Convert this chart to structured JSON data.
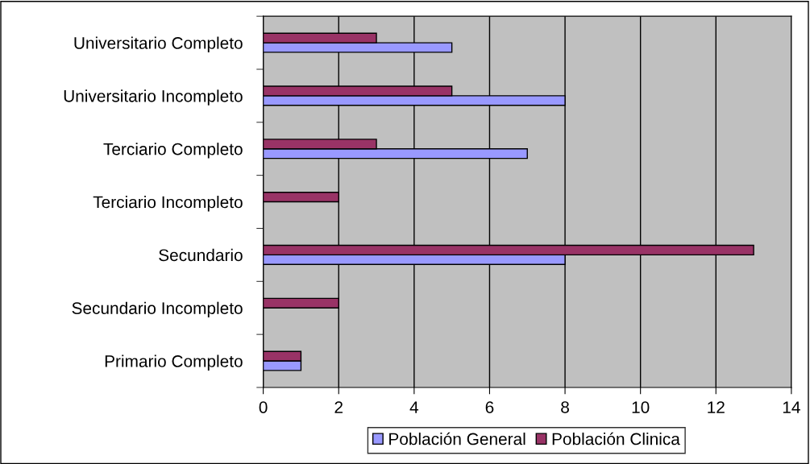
{
  "chart_data": {
    "type": "bar",
    "orientation": "horizontal",
    "categories": [
      "Universitario Completo",
      "Universitario Incompleto",
      "Terciario Completo",
      "Terciario Incompleto",
      "Secundario",
      "Secundario Incompleto",
      "Primario Completo"
    ],
    "series": [
      {
        "name": "Población General",
        "color": "#9999ff",
        "values": [
          5,
          8,
          7,
          null,
          8,
          null,
          1
        ]
      },
      {
        "name": "Población Clinica",
        "color": "#993366",
        "values": [
          3,
          5,
          3,
          2,
          13,
          2,
          1
        ]
      }
    ],
    "xlim": [
      0,
      14
    ],
    "xticks": [
      0,
      2,
      4,
      6,
      8,
      10,
      12,
      14
    ],
    "grid": "x",
    "legend": "bottom"
  }
}
